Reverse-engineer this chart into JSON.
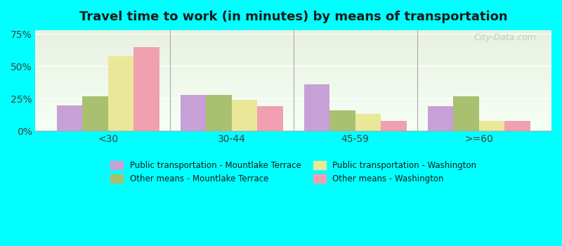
{
  "title": "Travel time to work (in minutes) by means of transportation",
  "categories": [
    "<30",
    "30-44",
    "45-59",
    ">=60"
  ],
  "series": {
    "pub_mt": [
      20,
      28,
      36,
      19
    ],
    "other_mt": [
      27,
      28,
      16,
      27
    ],
    "pub_wa": [
      58,
      24,
      13,
      8
    ],
    "other_wa": [
      65,
      19,
      8,
      8
    ]
  },
  "colors": {
    "pub_mt": "#c8a0d8",
    "other_mt": "#a8c070",
    "pub_wa": "#e8e898",
    "other_wa": "#f0a0b0"
  },
  "legend_labels": {
    "pub_mt": "Public transportation - Mountlake Terrace",
    "other_mt": "Other means - Mountlake Terrace",
    "pub_wa": "Public transportation - Washington",
    "other_wa": "Other means - Washington"
  },
  "yticks": [
    0,
    25,
    50,
    75
  ],
  "ylim": [
    0,
    78
  ],
  "background_color": "#00ffff",
  "plot_bg_top": "#e8f0e0",
  "plot_bg_bottom": "#f5fff5",
  "watermark": "City-Data.com"
}
